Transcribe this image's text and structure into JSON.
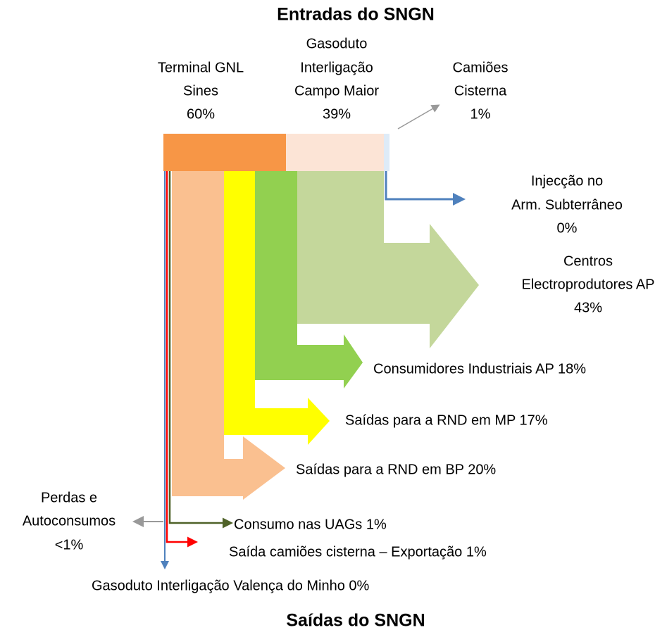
{
  "title": "Entradas do SNGN",
  "footer": "Saídas do SNGN",
  "inputs": [
    {
      "label": [
        "Terminal GNL",
        "Sines"
      ],
      "share": "60%"
    },
    {
      "label": [
        "Gasoduto",
        "Interligação",
        "Campo Maior"
      ],
      "share": "39%"
    },
    {
      "label": [
        "Camiões",
        "Cisterna"
      ],
      "share": "1%"
    }
  ],
  "outputs": [
    {
      "label": [
        "Injecção no",
        "Arm. Subterrâneo"
      ],
      "share": "0%"
    },
    {
      "label": [
        "Centros",
        "Electroprodutores AP"
      ],
      "share": "43%"
    },
    {
      "label": [
        "Consumidores Industriais AP 18%"
      ]
    },
    {
      "label": [
        "Saídas para a RND em MP  17%"
      ]
    },
    {
      "label": [
        "Saídas para a RND em BP  20%"
      ]
    },
    {
      "label": [
        "Perdas e",
        "Autoconsumos"
      ],
      "share": "<1%"
    },
    {
      "label": [
        "Consumo nas UAGs 1%"
      ]
    },
    {
      "label": [
        "Saída camiões cisterna – Exportação  1%"
      ]
    },
    {
      "label": [
        "Gasoduto Interligação Valença do Minho 0%"
      ]
    }
  ]
}
